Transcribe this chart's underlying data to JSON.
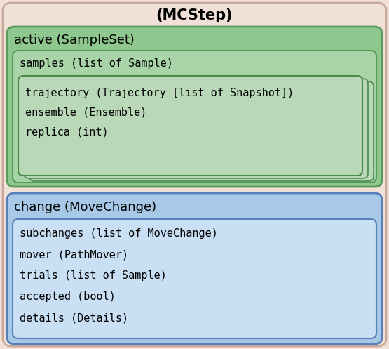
{
  "title": "(MCStep)",
  "title_fontsize": 15,
  "title_fontweight": "bold",
  "outer_bg": "#f0e0d8",
  "outer_border": "#c8a898",
  "green_outer_bg": "#8ec88e",
  "green_outer_border": "#5a9a5a",
  "green_mid_bg": "#a8d4a8",
  "green_mid_border": "#5a9a5a",
  "traj_box_bg": "#b8d8b8",
  "traj_box_border": "#4a8a4a",
  "blue_outer_bg": "#a8c8e8",
  "blue_outer_border": "#5880b8",
  "blue_inner_bg": "#c8dff4",
  "blue_inner_border": "#5880b8",
  "active_label": "active (SampleSet)",
  "active_fontsize": 13,
  "samples_label": "samples (list of Sample)",
  "samples_fontsize": 11,
  "trajectory_lines": [
    "trajectory (Trajectory [list of Snapshot])",
    "ensemble (Ensemble)",
    "replica (int)"
  ],
  "traj_fontsize": 11,
  "change_label": "change (MoveChange)",
  "change_fontsize": 13,
  "change_lines": [
    "subchanges (list of MoveChange)",
    "mover (PathMover)",
    "trials (list of Sample)",
    "accepted (bool)",
    "details (Details)"
  ],
  "change_lines_fontsize": 11
}
